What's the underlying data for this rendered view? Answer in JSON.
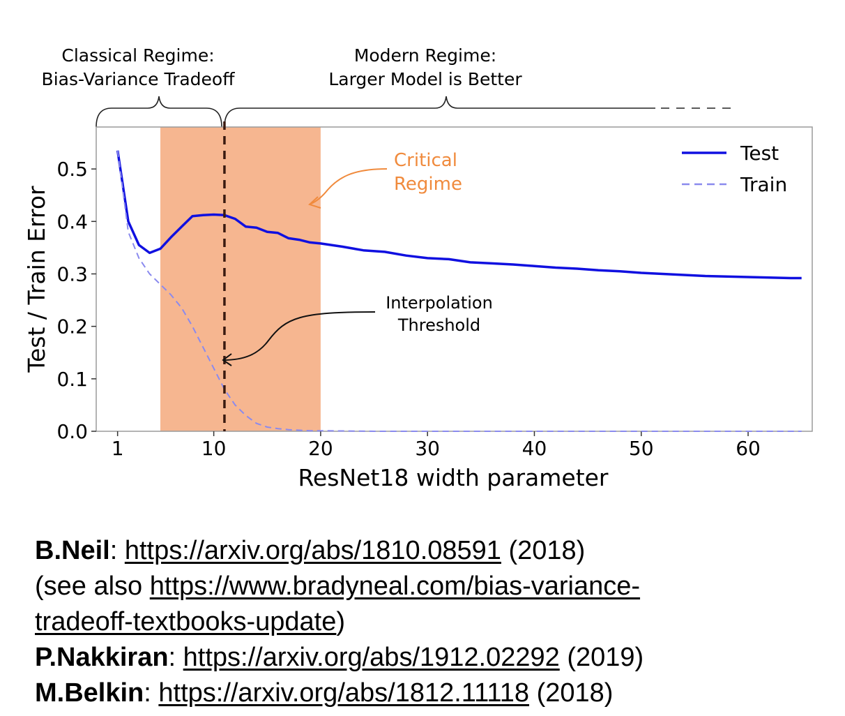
{
  "chart_data": {
    "type": "line",
    "xlabel": "ResNet18 width parameter",
    "ylabel": "Test / Train Error",
    "xlim": [
      -1,
      66
    ],
    "ylim": [
      0,
      0.58
    ],
    "x_ticks": [
      1,
      10,
      20,
      30,
      40,
      50,
      60
    ],
    "y_ticks": [
      0.0,
      0.1,
      0.2,
      0.3,
      0.4,
      0.5
    ],
    "y_tick_labels": [
      "0.0",
      "0.1",
      "0.2",
      "0.3",
      "0.4",
      "0.5"
    ],
    "grid": false,
    "legend_position": "top-right",
    "series": [
      {
        "name": "Test",
        "style": "solid",
        "color": "#1010e0",
        "x": [
          1,
          2,
          3,
          4,
          5,
          6,
          7,
          8,
          9,
          10,
          11,
          12,
          13,
          14,
          15,
          16,
          17,
          18,
          19,
          20,
          22,
          24,
          26,
          28,
          30,
          32,
          34,
          36,
          38,
          40,
          42,
          44,
          46,
          48,
          50,
          52,
          54,
          56,
          58,
          60,
          62,
          64,
          65
        ],
        "values": [
          0.535,
          0.4,
          0.355,
          0.34,
          0.348,
          0.37,
          0.39,
          0.41,
          0.412,
          0.413,
          0.412,
          0.405,
          0.39,
          0.388,
          0.38,
          0.378,
          0.368,
          0.365,
          0.36,
          0.358,
          0.352,
          0.345,
          0.342,
          0.335,
          0.33,
          0.328,
          0.322,
          0.32,
          0.318,
          0.315,
          0.312,
          0.31,
          0.307,
          0.305,
          0.302,
          0.3,
          0.298,
          0.296,
          0.295,
          0.294,
          0.293,
          0.292,
          0.292
        ]
      },
      {
        "name": "Train",
        "style": "dashed",
        "color": "#8a8aee",
        "x": [
          1,
          2,
          3,
          4,
          5,
          6,
          7,
          8,
          9,
          10,
          11,
          12,
          13,
          14,
          15,
          16,
          17,
          18,
          19,
          20,
          25,
          30,
          40,
          50,
          60,
          65
        ],
        "values": [
          0.535,
          0.38,
          0.33,
          0.3,
          0.28,
          0.26,
          0.235,
          0.2,
          0.16,
          0.12,
          0.08,
          0.05,
          0.03,
          0.015,
          0.008,
          0.005,
          0.003,
          0.002,
          0.001,
          0.001,
          0.0,
          0.0,
          0.0,
          0.0,
          0.0,
          0.0
        ]
      }
    ],
    "shaded_region": {
      "x_start": 5,
      "x_end": 20,
      "color": "#f6b690"
    },
    "vertical_line": {
      "x": 11,
      "style": "dashed",
      "color": "#3a1a10"
    },
    "annotations": {
      "critical_regime": [
        "Critical",
        "Regime"
      ],
      "interpolation_threshold": [
        "Interpolation",
        "Threshold"
      ],
      "classical_regime": [
        "Classical Regime:",
        "Bias-Variance Tradeoff"
      ],
      "modern_regime": [
        "Modern Regime:",
        "Larger Model is Better"
      ]
    },
    "colors": {
      "critical": "#f08a3c",
      "frame": "#9a9a9a"
    }
  },
  "references": [
    {
      "author": "B.Neil",
      "sep": ": ",
      "link": "https://arxiv.org/abs/1810.08591",
      "suffix": " (2018)"
    },
    {
      "prefix": "(see also ",
      "link": "https://www.bradyneal.com/bias-variance-",
      "suffix": ""
    },
    {
      "prefix": "",
      "link": "tradeoff-textbooks-update",
      "suffix": ")"
    },
    {
      "author": "P.Nakkiran",
      "sep": ": ",
      "link": "https://arxiv.org/abs/1912.02292",
      "suffix": " (2019)"
    },
    {
      "author": "M.Belkin",
      "sep": ": ",
      "link": "https://arxiv.org/abs/1812.11118",
      "suffix": " (2018)"
    }
  ]
}
